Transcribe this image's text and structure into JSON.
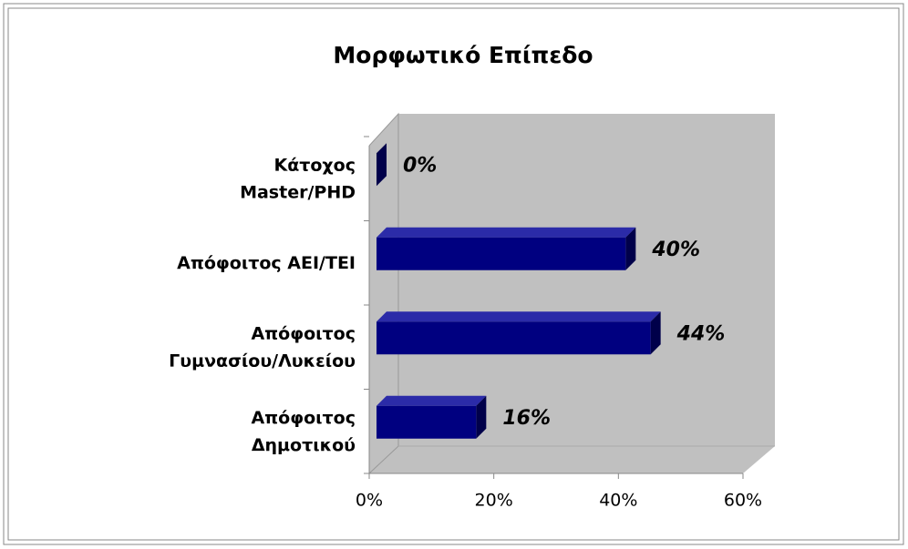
{
  "chart_data": {
    "type": "bar3d_horizontal",
    "title": "Μορφωτικό Επίπεδο",
    "categories": [
      "Κάτοχος\nMaster/PHD",
      "Απόφοιτος ΑΕΙ/ΤΕΙ",
      "Απόφοιτος\nΓυμνασίου/Λυκείου",
      "Απόφοιτος\nΔημοτικού"
    ],
    "values": [
      0,
      40,
      44,
      16
    ],
    "value_labels": [
      "0%",
      "40%",
      "44%",
      "16%"
    ],
    "color": "#000080",
    "xlim": [
      0,
      60
    ],
    "xticks": [
      {
        "value": 0,
        "label": "0%"
      },
      {
        "value": 20,
        "label": "20%"
      },
      {
        "value": 40,
        "label": "40%"
      },
      {
        "value": 60,
        "label": "60%"
      }
    ],
    "grid": false
  }
}
